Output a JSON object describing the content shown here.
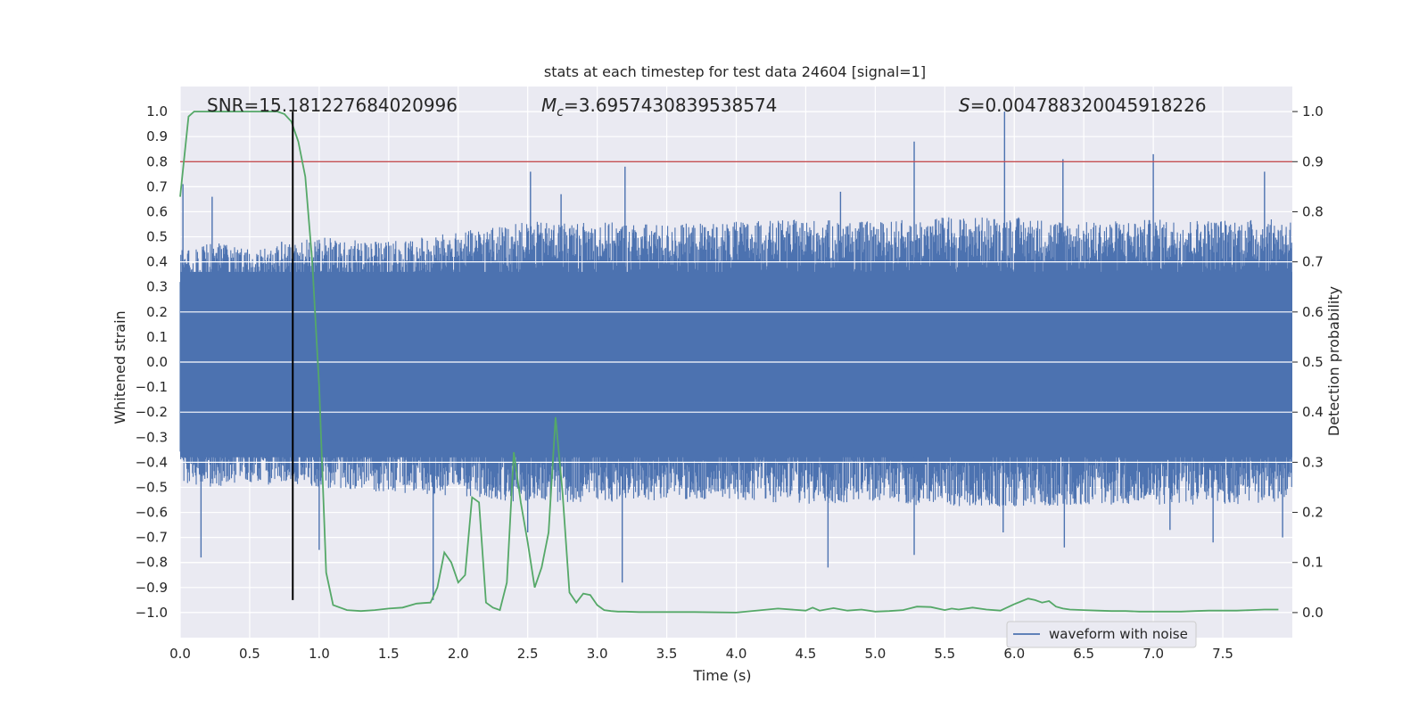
{
  "chart_data": {
    "type": "line",
    "title": "stats at each timestep for test data 24604 [signal=1]",
    "xlabel": "Time (s)",
    "ylabel_left": "Whitened strain",
    "ylabel_right": "Detection probability",
    "xlim": [
      0.0,
      8.0
    ],
    "ylim_left": [
      -1.1,
      1.1
    ],
    "ylim_right": [
      -0.05,
      1.05
    ],
    "x_ticks": [
      "0.0",
      "0.5",
      "1.0",
      "1.5",
      "2.0",
      "2.5",
      "3.0",
      "3.5",
      "4.0",
      "4.5",
      "5.0",
      "5.5",
      "6.0",
      "6.5",
      "7.0",
      "7.5"
    ],
    "y_ticks_left": [
      "−1.0",
      "−0.9",
      "−0.8",
      "−0.7",
      "−0.6",
      "−0.5",
      "−0.4",
      "−0.3",
      "−0.2",
      "−0.1",
      "0.0",
      "0.1",
      "0.2",
      "0.3",
      "0.4",
      "0.5",
      "0.6",
      "0.7",
      "0.8",
      "0.9",
      "1.0"
    ],
    "y_ticks_right": [
      "0.0",
      "0.1",
      "0.2",
      "0.3",
      "0.4",
      "0.5",
      "0.6",
      "0.7",
      "0.8",
      "0.9",
      "1.0"
    ],
    "grid": true,
    "legend": {
      "position": "lower-right",
      "entries": [
        "waveform with noise"
      ]
    },
    "annotations": {
      "snr": "SNR=15.181227684020996",
      "mc_symbol": "M",
      "mc_sub": "c",
      "mc_value": "=3.6957430839538574",
      "s_symbol": "S",
      "s_value": "=0.004788320045918226"
    },
    "threshold_line": {
      "y_right": 0.9,
      "color": "#c44e52"
    },
    "event_marker": {
      "x": 0.81,
      "y_range_left": [
        -0.95,
        1.0
      ],
      "color": "#000000"
    },
    "series": [
      {
        "name": "waveform with noise",
        "axis": "left",
        "color": "#4c72b0",
        "kind": "noise",
        "envelope": {
          "x": [
            0.0,
            0.25,
            0.5,
            0.75,
            1.0,
            1.5,
            2.0,
            2.5,
            3.0,
            3.5,
            4.0,
            4.5,
            5.0,
            5.5,
            6.0,
            6.5,
            7.0,
            7.5,
            8.0
          ],
          "upper": [
            0.45,
            0.48,
            0.45,
            0.47,
            0.5,
            0.48,
            0.52,
            0.56,
            0.56,
            0.55,
            0.56,
            0.57,
            0.56,
            0.58,
            0.58,
            0.56,
            0.57,
            0.57,
            0.57
          ],
          "lower": [
            -0.48,
            -0.5,
            -0.48,
            -0.5,
            -0.5,
            -0.52,
            -0.54,
            -0.56,
            -0.56,
            -0.55,
            -0.55,
            -0.57,
            -0.56,
            -0.58,
            -0.58,
            -0.57,
            -0.57,
            -0.57,
            -0.56
          ]
        },
        "peaks": [
          {
            "x": 0.02,
            "y": 0.71
          },
          {
            "x": 0.23,
            "y": 0.66
          },
          {
            "x": 0.73,
            "y": 0.48
          },
          {
            "x": 2.52,
            "y": 0.76
          },
          {
            "x": 2.74,
            "y": 0.67
          },
          {
            "x": 3.2,
            "y": 0.78
          },
          {
            "x": 4.75,
            "y": 0.68
          },
          {
            "x": 5.28,
            "y": 0.88
          },
          {
            "x": 5.93,
            "y": 1.0
          },
          {
            "x": 6.35,
            "y": 0.81
          },
          {
            "x": 7.0,
            "y": 0.83
          },
          {
            "x": 7.8,
            "y": 0.76
          },
          {
            "x": 0.15,
            "y": -0.78
          },
          {
            "x": 1.82,
            "y": -0.95
          },
          {
            "x": 3.18,
            "y": -0.88
          },
          {
            "x": 4.66,
            "y": -0.82
          },
          {
            "x": 5.28,
            "y": -0.77
          },
          {
            "x": 6.36,
            "y": -0.74
          },
          {
            "x": 7.43,
            "y": -0.72
          },
          {
            "x": 1.0,
            "y": -0.75
          },
          {
            "x": 2.5,
            "y": -0.68
          },
          {
            "x": 5.92,
            "y": -0.68
          },
          {
            "x": 7.12,
            "y": -0.67
          },
          {
            "x": 7.93,
            "y": -0.7
          }
        ]
      },
      {
        "name": "",
        "axis": "right",
        "color": "#55a868",
        "kind": "line",
        "x": [
          0.0,
          0.06,
          0.1,
          0.2,
          0.3,
          0.4,
          0.5,
          0.6,
          0.7,
          0.75,
          0.8,
          0.85,
          0.9,
          0.95,
          1.0,
          1.05,
          1.1,
          1.2,
          1.3,
          1.4,
          1.5,
          1.6,
          1.7,
          1.75,
          1.8,
          1.85,
          1.9,
          1.95,
          2.0,
          2.05,
          2.1,
          2.15,
          2.2,
          2.25,
          2.3,
          2.35,
          2.4,
          2.45,
          2.5,
          2.55,
          2.6,
          2.65,
          2.7,
          2.75,
          2.8,
          2.85,
          2.9,
          2.95,
          3.0,
          3.05,
          3.1,
          3.15,
          3.2,
          3.3,
          3.5,
          3.7,
          4.0,
          4.3,
          4.5,
          4.55,
          4.6,
          4.7,
          4.8,
          4.9,
          5.0,
          5.1,
          5.2,
          5.3,
          5.4,
          5.5,
          5.55,
          5.6,
          5.7,
          5.8,
          5.9,
          6.0,
          6.1,
          6.15,
          6.2,
          6.25,
          6.3,
          6.35,
          6.4,
          6.5,
          6.6,
          6.7,
          6.8,
          6.9,
          7.0,
          7.1,
          7.2,
          7.3,
          7.4,
          7.5,
          7.6,
          7.7,
          7.8,
          7.9
        ],
        "y": [
          0.83,
          0.99,
          1.0,
          1.0,
          1.0,
          1.0,
          1.0,
          1.0,
          1.0,
          0.995,
          0.98,
          0.94,
          0.87,
          0.7,
          0.45,
          0.08,
          0.015,
          0.005,
          0.003,
          0.005,
          0.008,
          0.01,
          0.018,
          0.019,
          0.02,
          0.05,
          0.12,
          0.1,
          0.06,
          0.075,
          0.23,
          0.22,
          0.02,
          0.01,
          0.005,
          0.06,
          0.32,
          0.22,
          0.14,
          0.05,
          0.09,
          0.16,
          0.39,
          0.24,
          0.04,
          0.02,
          0.038,
          0.035,
          0.015,
          0.005,
          0.003,
          0.002,
          0.002,
          0.001,
          0.001,
          0.001,
          0.0,
          0.008,
          0.004,
          0.01,
          0.004,
          0.009,
          0.004,
          0.006,
          0.002,
          0.003,
          0.005,
          0.012,
          0.011,
          0.005,
          0.008,
          0.006,
          0.01,
          0.006,
          0.004,
          0.017,
          0.028,
          0.025,
          0.02,
          0.023,
          0.012,
          0.008,
          0.006,
          0.005,
          0.004,
          0.003,
          0.003,
          0.002,
          0.002,
          0.002,
          0.002,
          0.003,
          0.004,
          0.004,
          0.004,
          0.005,
          0.006,
          0.006
        ]
      }
    ]
  }
}
